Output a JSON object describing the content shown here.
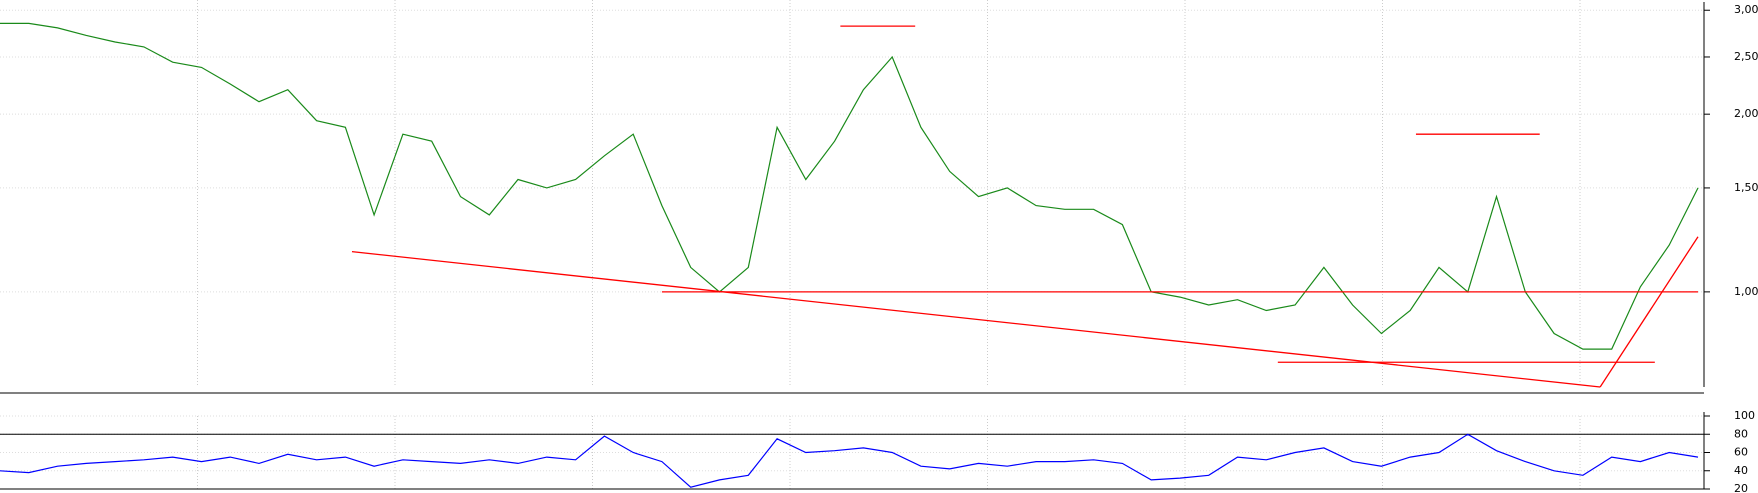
{
  "chart_data": [
    {
      "type": "line",
      "log_scale": true,
      "grid": true,
      "categories": [
        null,
        null,
        null,
        null,
        null,
        null,
        null,
        null,
        null,
        null,
        null,
        null,
        null,
        null,
        null,
        null,
        null,
        null,
        null,
        null,
        null,
        null,
        null,
        null,
        null,
        null,
        null,
        null,
        null,
        null,
        null,
        null,
        null,
        null,
        null,
        null,
        null,
        null,
        null,
        null,
        null,
        null,
        null,
        null,
        null,
        null,
        null,
        null,
        null,
        null,
        null,
        null,
        null,
        null,
        null,
        null,
        null,
        null,
        null,
        null
      ],
      "series": [
        {
          "color": "#1a8a1a",
          "values": [
            2.85,
            2.85,
            2.8,
            2.72,
            2.65,
            2.6,
            2.45,
            2.4,
            2.25,
            2.1,
            2.2,
            1.95,
            1.9,
            1.35,
            1.85,
            1.8,
            1.45,
            1.35,
            1.55,
            1.5,
            1.55,
            1.7,
            1.85,
            1.4,
            1.1,
            1.0,
            1.1,
            1.9,
            1.55,
            1.8,
            2.2,
            2.5,
            1.9,
            1.6,
            1.45,
            1.5,
            1.4,
            1.38,
            1.38,
            1.3,
            1.0,
            0.98,
            0.95,
            0.97,
            0.93,
            0.95,
            1.1,
            0.95,
            0.85,
            0.93,
            1.1,
            1.0,
            1.45,
            1.0,
            0.85,
            0.8,
            0.8,
            1.02,
            1.2,
            1.5
          ]
        }
      ],
      "trendlines": [
        {
          "color": "#ff0000",
          "x": [
            12.23,
            55.6
          ],
          "y": [
            1.17,
            0.69
          ]
        },
        {
          "color": "#ff0000",
          "x": [
            23,
            59
          ],
          "y": [
            1.0,
            1.0
          ]
        },
        {
          "color": "#ff0000",
          "x": [
            29.2,
            31.8
          ],
          "y": [
            2.82,
            2.82
          ]
        },
        {
          "color": "#ff0000",
          "x": [
            49.2,
            53.5
          ],
          "y": [
            1.85,
            1.85
          ]
        },
        {
          "color": "#ff0000",
          "x": [
            44.4,
            57.5
          ],
          "y": [
            0.76,
            0.76
          ]
        },
        {
          "color": "#ff0000",
          "x": [
            55.6,
            59
          ],
          "y": [
            0.69,
            1.24
          ]
        }
      ],
      "ylim": [
        0.69,
        3.05
      ],
      "yticks": [
        {
          "value": 1.0,
          "label": "1,00"
        },
        {
          "value": 1.5,
          "label": "1,50"
        },
        {
          "value": 2.0,
          "label": "2,00"
        },
        {
          "value": 2.5,
          "label": "2,50"
        },
        {
          "value": 3.0,
          "label": "3,00"
        }
      ]
    },
    {
      "type": "line",
      "grid": true,
      "series": [
        {
          "color": "#0000ff",
          "values": [
            40,
            38,
            45,
            48,
            50,
            52,
            55,
            50,
            55,
            48,
            58,
            52,
            55,
            45,
            52,
            50,
            48,
            52,
            48,
            55,
            52,
            78,
            60,
            50,
            22,
            30,
            35,
            75,
            60,
            62,
            65,
            60,
            45,
            42,
            48,
            45,
            50,
            50,
            52,
            48,
            30,
            32,
            35,
            55,
            52,
            60,
            65,
            50,
            45,
            55,
            60,
            80,
            62,
            50,
            40,
            35,
            55,
            50,
            60,
            55
          ]
        }
      ],
      "ylim": [
        20,
        100
      ],
      "yticks": [
        20,
        40,
        60,
        80,
        100
      ],
      "reference_lines": [
        20,
        80
      ]
    }
  ]
}
